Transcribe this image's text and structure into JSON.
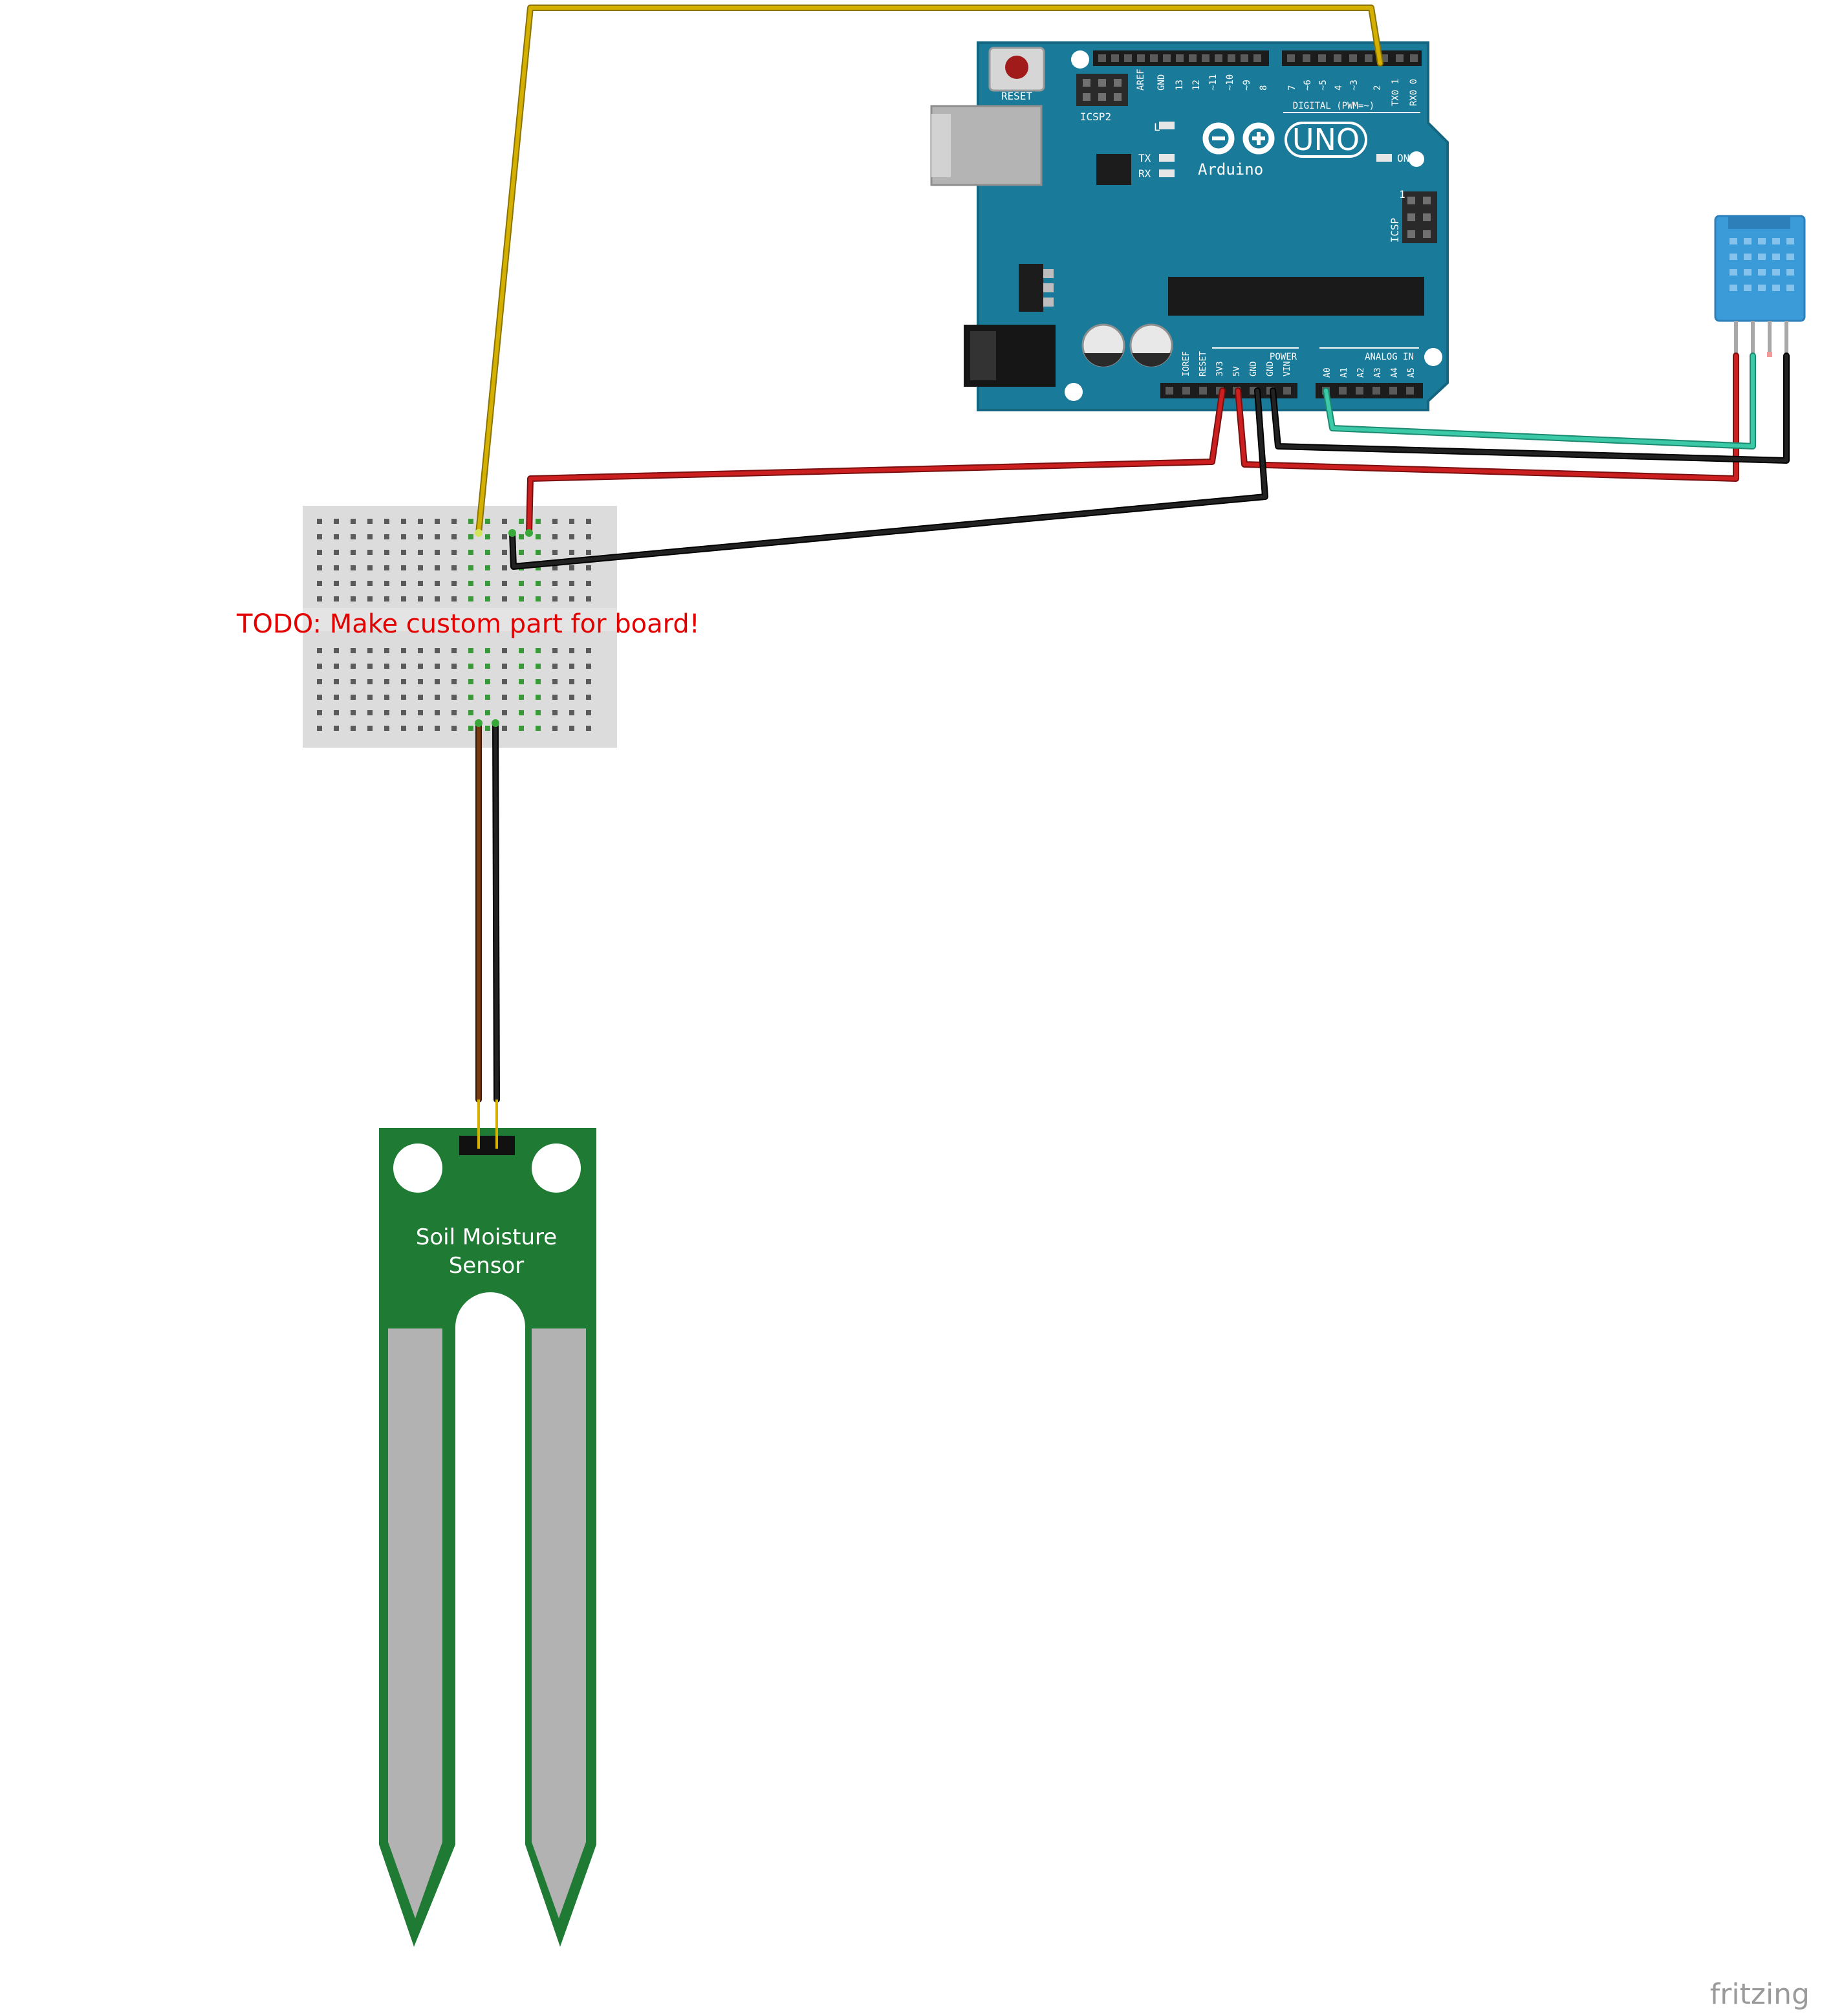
{
  "arduino": {
    "reset_label": "RESET",
    "icsp2_label": "ICSP2",
    "icsp_label": "ICSP",
    "icsp_pin1": "1",
    "aref_label": "AREF",
    "gnd_label": "GND",
    "pin13": "13",
    "pin12": "12",
    "pin11": "~11",
    "pin10": "~10",
    "pin9": "~9",
    "pin8": "8",
    "pin7": "7",
    "pin6": "~6",
    "pin5": "~5",
    "pin4": "4",
    "pin3": "~3",
    "pin2": "2",
    "pin1": "TX0 1",
    "pin0": "RX0 0",
    "digital_label": "DIGITAL (PWM=~)",
    "led_l": "L",
    "led_tx": "TX",
    "led_rx": "RX",
    "brand": "Arduino",
    "model": "UNO",
    "on_label": "ON",
    "power_label": "POWER",
    "analog_label": "ANALOG IN",
    "ioref": "IOREF",
    "reset_pin": "RESET",
    "v33": "3V3",
    "v5": "5V",
    "gnd1": "GND",
    "gnd2": "GND",
    "vin": "VIN",
    "a0": "A0",
    "a1": "A1",
    "a2": "A2",
    "a3": "A3",
    "a4": "A4",
    "a5": "A5"
  },
  "breadboard": {
    "note": "TODO: Make custom part for board!"
  },
  "soil_sensor": {
    "line1": "Soil Moisture",
    "line2": "Sensor"
  },
  "watermark": "fritzing",
  "wire_colors": {
    "yellow": "#d4b000",
    "red": "#cc1f1f",
    "black": "#222222",
    "teal": "#3cc9a8",
    "brown": "#7a3a10",
    "board_blue": "#1a7a9a",
    "pcb_green": "#1f7a34",
    "dht_blue": "#3b9bd8"
  }
}
